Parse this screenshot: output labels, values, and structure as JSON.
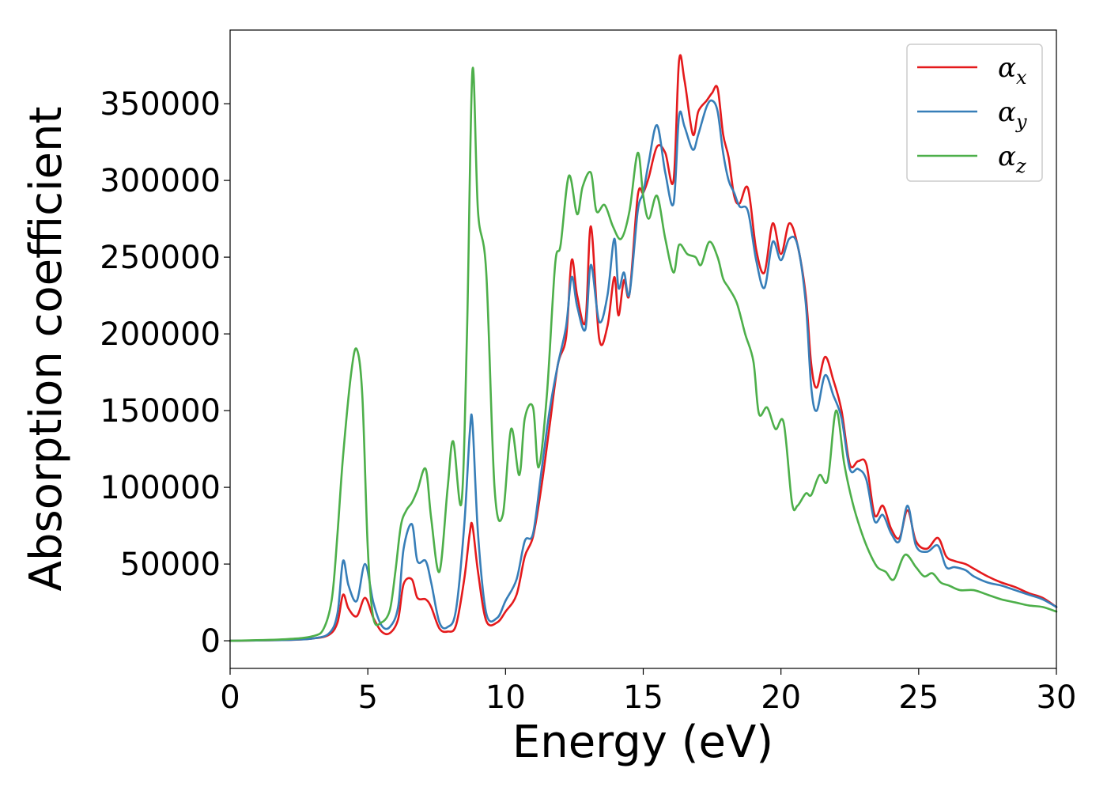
{
  "chart_data": {
    "type": "line",
    "title": "",
    "xlabel": "Energy (eV)",
    "ylabel": "Absorption coefficient",
    "xlim": [
      0,
      30
    ],
    "ylim": [
      -18000,
      398000
    ],
    "xticks": [
      0,
      5,
      10,
      15,
      20,
      25,
      30
    ],
    "yticks": [
      0,
      50000,
      100000,
      150000,
      200000,
      250000,
      300000,
      350000
    ],
    "grid": false,
    "legend_position": "top-right",
    "series": [
      {
        "name": "αx",
        "symbol": "α",
        "subscript": "x",
        "color": "#e41a1c",
        "x": [
          0,
          2,
          3,
          3.6,
          3.9,
          4.1,
          4.3,
          4.6,
          4.9,
          5.2,
          5.5,
          5.8,
          6.1,
          6.3,
          6.6,
          6.8,
          7.1,
          7.3,
          7.6,
          7.9,
          8.2,
          8.5,
          8.7,
          8.8,
          9.0,
          9.3,
          9.7,
          10.0,
          10.4,
          10.7,
          11.0,
          11.3,
          11.6,
          11.9,
          12.2,
          12.4,
          12.6,
          12.9,
          13.1,
          13.4,
          13.7,
          13.95,
          14.1,
          14.3,
          14.5,
          14.8,
          15.0,
          15.2,
          15.5,
          15.8,
          16.1,
          16.3,
          16.5,
          16.8,
          17.0,
          17.3,
          17.5,
          17.7,
          17.9,
          18.1,
          18.3,
          18.5,
          18.8,
          19.1,
          19.4,
          19.7,
          20.0,
          20.3,
          20.6,
          20.9,
          21.1,
          21.3,
          21.6,
          21.9,
          22.2,
          22.5,
          22.8,
          23.1,
          23.4,
          23.7,
          24.0,
          24.3,
          24.6,
          24.9,
          25.3,
          25.7,
          26.0,
          26.3,
          26.7,
          27.0,
          27.5,
          28.0,
          28.5,
          29.0,
          29.5,
          30.0
        ],
        "y": [
          0,
          500,
          1500,
          4000,
          12000,
          30000,
          21000,
          16000,
          28000,
          15000,
          6000,
          5000,
          14000,
          37000,
          40000,
          28000,
          27000,
          22000,
          8000,
          6000,
          10000,
          40000,
          70000,
          75000,
          45000,
          13000,
          12000,
          19000,
          30000,
          55000,
          68000,
          100000,
          140000,
          180000,
          198000,
          248000,
          225000,
          208000,
          270000,
          197000,
          205000,
          237000,
          212000,
          235000,
          226000,
          290000,
          292000,
          302000,
          322000,
          318000,
          300000,
          378000,
          365000,
          330000,
          345000,
          352000,
          357000,
          360000,
          330000,
          315000,
          290000,
          285000,
          295000,
          255000,
          240000,
          272000,
          252000,
          272000,
          258000,
          225000,
          180000,
          165000,
          185000,
          170000,
          150000,
          115000,
          117000,
          115000,
          82000,
          88000,
          73000,
          67000,
          85000,
          65000,
          60000,
          67000,
          55000,
          52000,
          50000,
          47000,
          42000,
          38000,
          35000,
          31000,
          28000,
          22000
        ]
      },
      {
        "name": "αy",
        "symbol": "α",
        "subscript": "y",
        "color": "#377eb8",
        "x": [
          0,
          2,
          3,
          3.6,
          3.9,
          4.1,
          4.3,
          4.6,
          4.9,
          5.2,
          5.5,
          5.8,
          6.1,
          6.3,
          6.6,
          6.8,
          7.1,
          7.3,
          7.6,
          7.9,
          8.2,
          8.5,
          8.7,
          8.8,
          9.0,
          9.3,
          9.7,
          10.0,
          10.4,
          10.7,
          11.0,
          11.3,
          11.6,
          11.9,
          12.2,
          12.4,
          12.6,
          12.9,
          13.1,
          13.4,
          13.7,
          13.95,
          14.1,
          14.3,
          14.5,
          14.8,
          15.0,
          15.2,
          15.5,
          15.8,
          16.1,
          16.3,
          16.5,
          16.8,
          17.0,
          17.3,
          17.5,
          17.7,
          17.9,
          18.1,
          18.3,
          18.5,
          18.8,
          19.1,
          19.4,
          19.7,
          20.0,
          20.3,
          20.6,
          20.9,
          21.1,
          21.3,
          21.6,
          21.9,
          22.2,
          22.5,
          22.8,
          23.1,
          23.4,
          23.7,
          24.0,
          24.3,
          24.6,
          24.9,
          25.3,
          25.7,
          26.0,
          26.3,
          26.7,
          27.0,
          27.5,
          28.0,
          28.5,
          29.0,
          29.5,
          30.0
        ],
        "y": [
          0,
          500,
          1500,
          5000,
          18000,
          52000,
          36000,
          26000,
          50000,
          25000,
          10000,
          9000,
          22000,
          60000,
          76000,
          52000,
          52000,
          38000,
          12000,
          9000,
          20000,
          75000,
          135000,
          142000,
          70000,
          18000,
          15000,
          26000,
          40000,
          65000,
          70000,
          110000,
          150000,
          180000,
          205000,
          237000,
          218000,
          203000,
          245000,
          208000,
          225000,
          262000,
          230000,
          240000,
          226000,
          280000,
          292000,
          312000,
          336000,
          305000,
          285000,
          342000,
          335000,
          320000,
          330000,
          348000,
          352000,
          345000,
          318000,
          300000,
          292000,
          283000,
          280000,
          248000,
          230000,
          260000,
          248000,
          262000,
          258000,
          220000,
          165000,
          150000,
          173000,
          160000,
          145000,
          112000,
          112000,
          105000,
          78000,
          82000,
          70000,
          65000,
          88000,
          62000,
          58000,
          62000,
          48000,
          48000,
          46000,
          42000,
          38000,
          36000,
          33000,
          30000,
          27000,
          22000
        ]
      },
      {
        "name": "αz",
        "symbol": "α",
        "subscript": "z",
        "color": "#4daf4a",
        "x": [
          0,
          2,
          3,
          3.4,
          3.7,
          3.9,
          4.1,
          4.4,
          4.6,
          4.8,
          5.0,
          5.2,
          5.5,
          5.8,
          6.0,
          6.2,
          6.4,
          6.6,
          6.8,
          7.1,
          7.3,
          7.6,
          7.9,
          8.1,
          8.4,
          8.6,
          8.8,
          9.0,
          9.3,
          9.6,
          9.9,
          10.2,
          10.5,
          10.7,
          11.0,
          11.2,
          11.5,
          11.8,
          12.0,
          12.3,
          12.6,
          12.8,
          13.1,
          13.3,
          13.6,
          13.9,
          14.2,
          14.5,
          14.8,
          15.0,
          15.2,
          15.5,
          15.8,
          16.1,
          16.3,
          16.6,
          16.9,
          17.1,
          17.4,
          17.7,
          17.9,
          18.1,
          18.4,
          18.7,
          19.0,
          19.2,
          19.5,
          19.8,
          20.1,
          20.4,
          20.6,
          20.9,
          21.1,
          21.4,
          21.7,
          22.0,
          22.3,
          22.6,
          22.9,
          23.2,
          23.5,
          23.8,
          24.1,
          24.5,
          24.9,
          25.2,
          25.5,
          25.8,
          26.1,
          26.5,
          27.0,
          27.5,
          28.0,
          28.5,
          29.0,
          29.5,
          30.0
        ],
        "y": [
          0,
          1000,
          3000,
          8000,
          28000,
          70000,
          120000,
          175000,
          190000,
          160000,
          60000,
          15000,
          12000,
          20000,
          45000,
          75000,
          85000,
          90000,
          98000,
          112000,
          80000,
          45000,
          100000,
          130000,
          90000,
          200000,
          372000,
          280000,
          240000,
          100000,
          82000,
          138000,
          108000,
          145000,
          152000,
          113000,
          160000,
          245000,
          258000,
          303000,
          278000,
          296000,
          305000,
          280000,
          284000,
          270000,
          262000,
          280000,
          318000,
          290000,
          275000,
          290000,
          262000,
          240000,
          258000,
          252000,
          250000,
          245000,
          260000,
          250000,
          236000,
          230000,
          220000,
          200000,
          182000,
          148000,
          152000,
          138000,
          142000,
          90000,
          88000,
          96000,
          95000,
          108000,
          105000,
          150000,
          115000,
          90000,
          72000,
          58000,
          48000,
          45000,
          40000,
          56000,
          48000,
          42000,
          44000,
          38000,
          36000,
          33000,
          33000,
          30000,
          27000,
          25000,
          23000,
          22000,
          19000
        ]
      }
    ]
  }
}
